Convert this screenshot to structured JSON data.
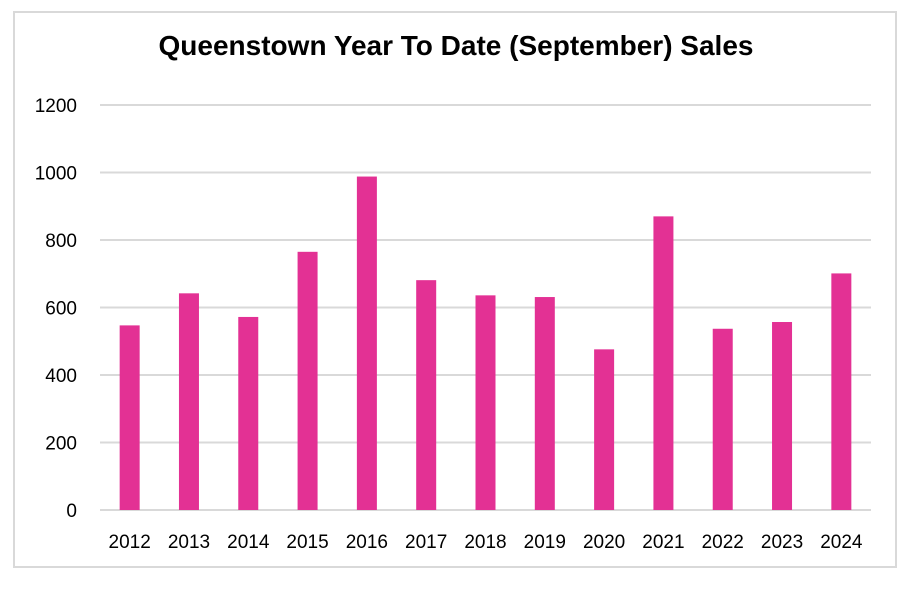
{
  "chart_data": {
    "type": "bar",
    "title": "Queenstown Year To Date (September) Sales",
    "xlabel": "",
    "ylabel": "",
    "categories": [
      "2012",
      "2013",
      "2014",
      "2015",
      "2016",
      "2017",
      "2018",
      "2019",
      "2020",
      "2021",
      "2022",
      "2023",
      "2024"
    ],
    "series": [
      {
        "values": [
          547,
          642,
          572,
          765,
          988,
          681,
          636,
          631,
          476,
          870,
          537,
          557,
          701
        ]
      }
    ],
    "ylim": [
      0,
      1200
    ],
    "yticks": [
      0,
      200,
      400,
      600,
      800,
      1000,
      1200
    ],
    "grid": true,
    "legend": "none",
    "colors": {
      "bar": "#e33194",
      "grid": "#d9d9d9",
      "frame": "#d9d9d9"
    }
  }
}
